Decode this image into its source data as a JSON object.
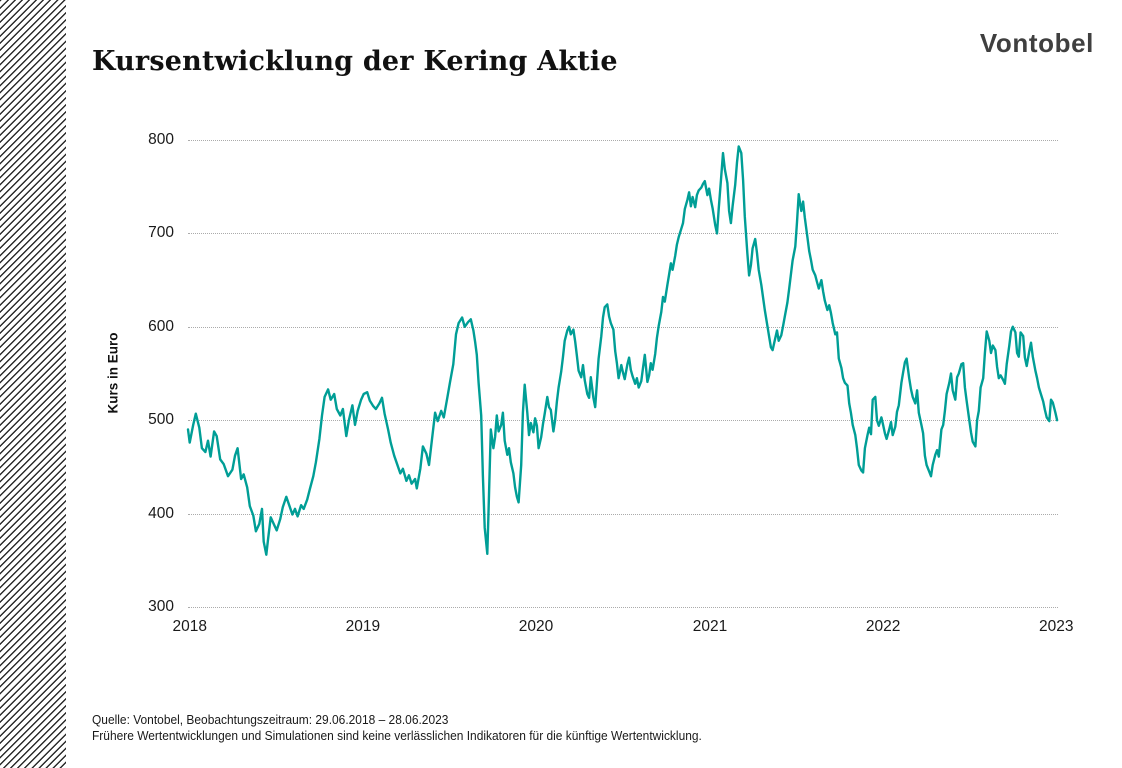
{
  "header": {
    "title": "Kursentwicklung der Kering Aktie",
    "brand": "Vontobel"
  },
  "chart_data": {
    "type": "line",
    "title": "Kursentwicklung der Kering Aktie",
    "series_name": "Kering Aktie Kurs",
    "ylabel": "Kurs in Euro",
    "xlabel": "",
    "ylim": [
      300,
      800
    ],
    "y_ticks": [
      800,
      700,
      600,
      500,
      400,
      300
    ],
    "x_ticks": [
      {
        "label": "2018",
        "f": 0.002
      },
      {
        "label": "2019",
        "f": 0.201
      },
      {
        "label": "2020",
        "f": 0.4
      },
      {
        "label": "2021",
        "f": 0.6
      },
      {
        "label": "2022",
        "f": 0.799
      },
      {
        "label": "2023",
        "f": 0.998
      }
    ],
    "grid": "horizontal-dotted",
    "legend_position": "none",
    "line_color": "#009E96",
    "observation_window": [
      "29.06.2018",
      "28.06.2023"
    ],
    "points": [
      [
        0.0,
        490
      ],
      [
        0.002,
        476
      ],
      [
        0.006,
        495
      ],
      [
        0.009,
        507
      ],
      [
        0.013,
        492
      ],
      [
        0.016,
        470
      ],
      [
        0.02,
        466
      ],
      [
        0.023,
        478
      ],
      [
        0.026,
        461
      ],
      [
        0.03,
        488
      ],
      [
        0.033,
        483
      ],
      [
        0.037,
        458
      ],
      [
        0.041,
        453
      ],
      [
        0.046,
        440
      ],
      [
        0.051,
        447
      ],
      [
        0.054,
        462
      ],
      [
        0.057,
        470
      ],
      [
        0.061,
        437
      ],
      [
        0.064,
        442
      ],
      [
        0.068,
        428
      ],
      [
        0.071,
        408
      ],
      [
        0.075,
        398
      ],
      [
        0.078,
        381
      ],
      [
        0.082,
        389
      ],
      [
        0.085,
        405
      ],
      [
        0.087,
        370
      ],
      [
        0.09,
        356
      ],
      [
        0.092,
        372
      ],
      [
        0.095,
        396
      ],
      [
        0.099,
        388
      ],
      [
        0.102,
        382
      ],
      [
        0.106,
        394
      ],
      [
        0.109,
        407
      ],
      [
        0.113,
        418
      ],
      [
        0.116,
        410
      ],
      [
        0.12,
        399
      ],
      [
        0.123,
        405
      ],
      [
        0.126,
        397
      ],
      [
        0.13,
        409
      ],
      [
        0.133,
        405
      ],
      [
        0.137,
        415
      ],
      [
        0.14,
        426
      ],
      [
        0.144,
        440
      ],
      [
        0.147,
        455
      ],
      [
        0.151,
        480
      ],
      [
        0.154,
        505
      ],
      [
        0.157,
        525
      ],
      [
        0.161,
        533
      ],
      [
        0.164,
        522
      ],
      [
        0.168,
        528
      ],
      [
        0.171,
        512
      ],
      [
        0.175,
        505
      ],
      [
        0.178,
        512
      ],
      [
        0.182,
        483
      ],
      [
        0.185,
        500
      ],
      [
        0.189,
        516
      ],
      [
        0.192,
        495
      ],
      [
        0.195,
        510
      ],
      [
        0.199,
        522
      ],
      [
        0.202,
        528
      ],
      [
        0.206,
        530
      ],
      [
        0.209,
        521
      ],
      [
        0.213,
        515
      ],
      [
        0.216,
        512
      ],
      [
        0.22,
        518
      ],
      [
        0.223,
        524
      ],
      [
        0.226,
        507
      ],
      [
        0.23,
        490
      ],
      [
        0.233,
        476
      ],
      [
        0.237,
        462
      ],
      [
        0.24,
        454
      ],
      [
        0.244,
        443
      ],
      [
        0.247,
        448
      ],
      [
        0.251,
        435
      ],
      [
        0.254,
        441
      ],
      [
        0.257,
        432
      ],
      [
        0.261,
        437
      ],
      [
        0.263,
        427
      ],
      [
        0.267,
        448
      ],
      [
        0.27,
        472
      ],
      [
        0.274,
        464
      ],
      [
        0.277,
        452
      ],
      [
        0.28,
        476
      ],
      [
        0.284,
        508
      ],
      [
        0.287,
        499
      ],
      [
        0.291,
        510
      ],
      [
        0.294,
        503
      ],
      [
        0.298,
        524
      ],
      [
        0.301,
        540
      ],
      [
        0.305,
        560
      ],
      [
        0.308,
        592
      ],
      [
        0.311,
        604
      ],
      [
        0.315,
        610
      ],
      [
        0.318,
        600
      ],
      [
        0.322,
        605
      ],
      [
        0.325,
        608
      ],
      [
        0.328,
        596
      ],
      [
        0.33,
        584
      ],
      [
        0.332,
        570
      ],
      [
        0.334,
        540
      ],
      [
        0.337,
        505
      ],
      [
        0.339,
        440
      ],
      [
        0.341,
        385
      ],
      [
        0.344,
        357
      ],
      [
        0.346,
        420
      ],
      [
        0.348,
        490
      ],
      [
        0.351,
        470
      ],
      [
        0.353,
        482
      ],
      [
        0.355,
        505
      ],
      [
        0.357,
        488
      ],
      [
        0.36,
        495
      ],
      [
        0.362,
        508
      ],
      [
        0.364,
        478
      ],
      [
        0.367,
        463
      ],
      [
        0.369,
        470
      ],
      [
        0.371,
        455
      ],
      [
        0.374,
        443
      ],
      [
        0.376,
        428
      ],
      [
        0.378,
        418
      ],
      [
        0.38,
        412
      ],
      [
        0.383,
        452
      ],
      [
        0.385,
        508
      ],
      [
        0.387,
        538
      ],
      [
        0.39,
        508
      ],
      [
        0.392,
        484
      ],
      [
        0.394,
        497
      ],
      [
        0.397,
        487
      ],
      [
        0.399,
        502
      ],
      [
        0.401,
        494
      ],
      [
        0.403,
        470
      ],
      [
        0.406,
        482
      ],
      [
        0.408,
        496
      ],
      [
        0.41,
        507
      ],
      [
        0.413,
        525
      ],
      [
        0.415,
        514
      ],
      [
        0.417,
        511
      ],
      [
        0.42,
        488
      ],
      [
        0.422,
        500
      ],
      [
        0.424,
        520
      ],
      [
        0.426,
        535
      ],
      [
        0.429,
        552
      ],
      [
        0.431,
        568
      ],
      [
        0.433,
        585
      ],
      [
        0.436,
        596
      ],
      [
        0.438,
        600
      ],
      [
        0.44,
        592
      ],
      [
        0.443,
        597
      ],
      [
        0.445,
        584
      ],
      [
        0.447,
        569
      ],
      [
        0.449,
        553
      ],
      [
        0.452,
        546
      ],
      [
        0.454,
        559
      ],
      [
        0.456,
        543
      ],
      [
        0.459,
        528
      ],
      [
        0.461,
        524
      ],
      [
        0.463,
        546
      ],
      [
        0.466,
        524
      ],
      [
        0.468,
        514
      ],
      [
        0.47,
        540
      ],
      [
        0.472,
        566
      ],
      [
        0.475,
        590
      ],
      [
        0.477,
        610
      ],
      [
        0.479,
        621
      ],
      [
        0.482,
        624
      ],
      [
        0.484,
        611
      ],
      [
        0.486,
        604
      ],
      [
        0.489,
        597
      ],
      [
        0.491,
        574
      ],
      [
        0.493,
        561
      ],
      [
        0.495,
        545
      ],
      [
        0.498,
        559
      ],
      [
        0.5,
        551
      ],
      [
        0.502,
        544
      ],
      [
        0.505,
        560
      ],
      [
        0.507,
        567
      ],
      [
        0.509,
        554
      ],
      [
        0.511,
        547
      ],
      [
        0.514,
        539
      ],
      [
        0.516,
        545
      ],
      [
        0.518,
        535
      ],
      [
        0.521,
        542
      ],
      [
        0.523,
        556
      ],
      [
        0.525,
        570
      ],
      [
        0.528,
        541
      ],
      [
        0.53,
        548
      ],
      [
        0.532,
        561
      ],
      [
        0.534,
        554
      ],
      [
        0.537,
        571
      ],
      [
        0.539,
        588
      ],
      [
        0.541,
        601
      ],
      [
        0.544,
        616
      ],
      [
        0.546,
        632
      ],
      [
        0.548,
        627
      ],
      [
        0.551,
        645
      ],
      [
        0.553,
        656
      ],
      [
        0.555,
        668
      ],
      [
        0.557,
        661
      ],
      [
        0.56,
        676
      ],
      [
        0.562,
        688
      ],
      [
        0.564,
        696
      ],
      [
        0.567,
        705
      ],
      [
        0.569,
        711
      ],
      [
        0.571,
        726
      ],
      [
        0.574,
        736
      ],
      [
        0.576,
        744
      ],
      [
        0.578,
        729
      ],
      [
        0.58,
        739
      ],
      [
        0.583,
        728
      ],
      [
        0.585,
        741
      ],
      [
        0.587,
        746
      ],
      [
        0.59,
        749
      ],
      [
        0.592,
        753
      ],
      [
        0.594,
        756
      ],
      [
        0.597,
        741
      ],
      [
        0.599,
        748
      ],
      [
        0.601,
        736
      ],
      [
        0.603,
        727
      ],
      [
        0.606,
        709
      ],
      [
        0.608,
        700
      ],
      [
        0.61,
        726
      ],
      [
        0.613,
        762
      ],
      [
        0.615,
        786
      ],
      [
        0.617,
        769
      ],
      [
        0.62,
        754
      ],
      [
        0.622,
        724
      ],
      [
        0.624,
        711
      ],
      [
        0.626,
        729
      ],
      [
        0.629,
        752
      ],
      [
        0.631,
        776
      ],
      [
        0.633,
        793
      ],
      [
        0.636,
        786
      ],
      [
        0.638,
        757
      ],
      [
        0.64,
        718
      ],
      [
        0.643,
        678
      ],
      [
        0.645,
        655
      ],
      [
        0.647,
        666
      ],
      [
        0.649,
        684
      ],
      [
        0.652,
        694
      ],
      [
        0.654,
        679
      ],
      [
        0.656,
        661
      ],
      [
        0.659,
        645
      ],
      [
        0.661,
        631
      ],
      [
        0.663,
        618
      ],
      [
        0.666,
        601
      ],
      [
        0.668,
        589
      ],
      [
        0.67,
        578
      ],
      [
        0.672,
        575
      ],
      [
        0.675,
        588
      ],
      [
        0.677,
        596
      ],
      [
        0.679,
        585
      ],
      [
        0.682,
        591
      ],
      [
        0.684,
        601
      ],
      [
        0.686,
        611
      ],
      [
        0.689,
        626
      ],
      [
        0.691,
        641
      ],
      [
        0.693,
        656
      ],
      [
        0.695,
        671
      ],
      [
        0.698,
        686
      ],
      [
        0.7,
        712
      ],
      [
        0.702,
        742
      ],
      [
        0.705,
        724
      ],
      [
        0.707,
        734
      ],
      [
        0.709,
        717
      ],
      [
        0.712,
        696
      ],
      [
        0.714,
        681
      ],
      [
        0.716,
        672
      ],
      [
        0.718,
        661
      ],
      [
        0.721,
        655
      ],
      [
        0.723,
        648
      ],
      [
        0.725,
        641
      ],
      [
        0.728,
        650
      ],
      [
        0.73,
        638
      ],
      [
        0.732,
        628
      ],
      [
        0.735,
        618
      ],
      [
        0.737,
        623
      ],
      [
        0.739,
        615
      ],
      [
        0.741,
        604
      ],
      [
        0.744,
        592
      ],
      [
        0.746,
        594
      ],
      [
        0.748,
        566
      ],
      [
        0.751,
        556
      ],
      [
        0.753,
        545
      ],
      [
        0.755,
        540
      ],
      [
        0.758,
        537
      ],
      [
        0.76,
        518
      ],
      [
        0.762,
        508
      ],
      [
        0.764,
        495
      ],
      [
        0.767,
        484
      ],
      [
        0.769,
        470
      ],
      [
        0.771,
        452
      ],
      [
        0.774,
        446
      ],
      [
        0.776,
        444
      ],
      [
        0.778,
        470
      ],
      [
        0.781,
        484
      ],
      [
        0.783,
        492
      ],
      [
        0.785,
        485
      ],
      [
        0.787,
        522
      ],
      [
        0.79,
        525
      ],
      [
        0.792,
        500
      ],
      [
        0.794,
        494
      ],
      [
        0.797,
        503
      ],
      [
        0.799,
        495
      ],
      [
        0.801,
        486
      ],
      [
        0.803,
        480
      ],
      [
        0.806,
        490
      ],
      [
        0.808,
        498
      ],
      [
        0.81,
        484
      ],
      [
        0.813,
        493
      ],
      [
        0.815,
        509
      ],
      [
        0.817,
        516
      ],
      [
        0.82,
        540
      ],
      [
        0.822,
        551
      ],
      [
        0.824,
        562
      ],
      [
        0.826,
        566
      ],
      [
        0.829,
        545
      ],
      [
        0.831,
        533
      ],
      [
        0.833,
        525
      ],
      [
        0.836,
        518
      ],
      [
        0.838,
        532
      ],
      [
        0.84,
        508
      ],
      [
        0.843,
        495
      ],
      [
        0.845,
        486
      ],
      [
        0.847,
        462
      ],
      [
        0.849,
        452
      ],
      [
        0.852,
        445
      ],
      [
        0.854,
        440
      ],
      [
        0.856,
        452
      ],
      [
        0.859,
        463
      ],
      [
        0.861,
        468
      ],
      [
        0.863,
        461
      ],
      [
        0.866,
        490
      ],
      [
        0.868,
        495
      ],
      [
        0.87,
        510
      ],
      [
        0.872,
        528
      ],
      [
        0.875,
        540
      ],
      [
        0.877,
        550
      ],
      [
        0.879,
        532
      ],
      [
        0.882,
        522
      ],
      [
        0.884,
        546
      ],
      [
        0.886,
        550
      ],
      [
        0.889,
        560
      ],
      [
        0.891,
        561
      ],
      [
        0.893,
        535
      ],
      [
        0.895,
        521
      ],
      [
        0.898,
        500
      ],
      [
        0.9,
        487
      ],
      [
        0.902,
        477
      ],
      [
        0.905,
        472
      ],
      [
        0.907,
        500
      ],
      [
        0.909,
        510
      ],
      [
        0.911,
        535
      ],
      [
        0.914,
        545
      ],
      [
        0.916,
        572
      ],
      [
        0.918,
        595
      ],
      [
        0.921,
        585
      ],
      [
        0.923,
        572
      ],
      [
        0.925,
        580
      ],
      [
        0.928,
        575
      ],
      [
        0.93,
        557
      ],
      [
        0.932,
        545
      ],
      [
        0.934,
        548
      ],
      [
        0.937,
        543
      ],
      [
        0.939,
        539
      ],
      [
        0.941,
        560
      ],
      [
        0.944,
        580
      ],
      [
        0.946,
        595
      ],
      [
        0.948,
        600
      ],
      [
        0.951,
        594
      ],
      [
        0.953,
        572
      ],
      [
        0.955,
        568
      ],
      [
        0.957,
        594
      ],
      [
        0.96,
        590
      ],
      [
        0.962,
        567
      ],
      [
        0.964,
        558
      ],
      [
        0.967,
        574
      ],
      [
        0.969,
        583
      ],
      [
        0.971,
        568
      ],
      [
        0.974,
        553
      ],
      [
        0.976,
        545
      ],
      [
        0.978,
        535
      ],
      [
        0.98,
        529
      ],
      [
        0.983,
        520
      ],
      [
        0.985,
        511
      ],
      [
        0.987,
        503
      ],
      [
        0.99,
        499
      ],
      [
        0.992,
        522
      ],
      [
        0.994,
        519
      ],
      [
        0.997,
        508
      ],
      [
        0.999,
        500
      ]
    ]
  },
  "footer": {
    "line1": "Quelle: Vontobel, Beobachtungszeitraum: 29.06.2018 – 28.06.2023",
    "line2": "Frühere Wertentwicklungen und Simulationen sind keine verlässlichen Indikatoren für die künftige Wertentwicklung."
  }
}
